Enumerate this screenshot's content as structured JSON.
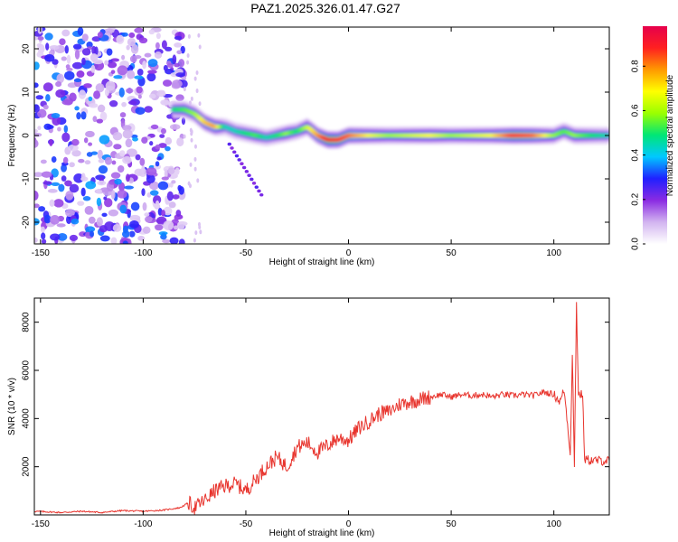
{
  "title": "PAZ1.2025.326.01.47.G27",
  "colors": {
    "snr_line": "#e8352e",
    "frame": "#000000",
    "spectral_peak": "#ff2a2a"
  },
  "chart_data": [
    {
      "type": "heatmap",
      "name": "spectrogram",
      "xlabel": "Height of straight line (km)",
      "ylabel": "Frequency (Hz)",
      "xlim": [
        -153,
        127
      ],
      "ylim": [
        -25,
        25
      ],
      "xticks": [
        -150,
        -100,
        -50,
        0,
        50,
        100
      ],
      "yticks": [
        -20,
        -10,
        0,
        10,
        20
      ],
      "colorbar": {
        "label": "Normalized spectral amplitude",
        "range": [
          0,
          0.98
        ],
        "ticks": [
          "0.0",
          "0.2",
          "0.4",
          "0.6",
          "0.8"
        ],
        "colormap": [
          "#ffffff",
          "#d2b4f0",
          "#8a2be2",
          "#2020ff",
          "#00c8ff",
          "#00e676",
          "#9aff00",
          "#ffff00",
          "#ff9900",
          "#ff2020",
          "#e6004c"
        ]
      },
      "ridge_description": "Scattered noise below about -80 km; signal converges to ~6 Hz near -80 km and follows ~0 Hz from -60 km to 127 km",
      "ridge": {
        "x": [
          -85,
          -80,
          -75,
          -70,
          -65,
          -60,
          -55,
          -50,
          -45,
          -40,
          -35,
          -30,
          -25,
          -20,
          -15,
          -10,
          -5,
          0,
          10,
          20,
          30,
          40,
          50,
          60,
          70,
          80,
          90,
          100,
          105,
          110,
          120,
          127
        ],
        "freq": [
          6,
          6,
          5,
          3,
          2,
          2,
          1,
          0.5,
          0,
          -0.5,
          0,
          0.5,
          1,
          2,
          0,
          -1,
          -1,
          0,
          0,
          0,
          0,
          0,
          0,
          0,
          0,
          0,
          0,
          0,
          1,
          0,
          0,
          0
        ],
        "amplitude": [
          0.5,
          0.55,
          0.6,
          0.75,
          0.8,
          0.45,
          0.45,
          0.5,
          0.55,
          0.45,
          0.5,
          0.6,
          0.5,
          0.65,
          0.8,
          0.95,
          0.9,
          0.85,
          0.7,
          0.6,
          0.65,
          0.7,
          0.6,
          0.65,
          0.7,
          0.9,
          0.85,
          0.6,
          0.55,
          0.6,
          0.5,
          0.45
        ]
      }
    },
    {
      "type": "line",
      "name": "snr",
      "xlabel": "Height of straight line (km)",
      "ylabel": "SNR (10 * v/v)",
      "xlim": [
        -153,
        127
      ],
      "ylim": [
        0,
        9000
      ],
      "xticks": [
        -150,
        -100,
        -50,
        0,
        50,
        100
      ],
      "yticks": [
        2000,
        4000,
        6000,
        8000
      ],
      "series": [
        {
          "name": "SNR",
          "x": [
            -153,
            -140,
            -130,
            -120,
            -110,
            -100,
            -90,
            -82,
            -78,
            -75,
            -70,
            -65,
            -60,
            -55,
            -50,
            -45,
            -40,
            -35,
            -30,
            -25,
            -20,
            -15,
            -10,
            -5,
            0,
            5,
            10,
            15,
            20,
            25,
            30,
            35,
            40,
            45,
            50,
            55,
            60,
            65,
            70,
            75,
            80,
            85,
            90,
            95,
            100,
            103,
            105,
            107,
            108,
            109,
            110,
            111,
            112,
            114,
            115,
            120,
            127
          ],
          "y": [
            150,
            100,
            150,
            100,
            180,
            150,
            200,
            300,
            500,
            300,
            600,
            1000,
            1200,
            1300,
            1000,
            1500,
            2000,
            2400,
            2000,
            2800,
            3000,
            2600,
            2900,
            3200,
            3100,
            3600,
            3900,
            4200,
            4300,
            4600,
            4700,
            4800,
            4900,
            5000,
            4900,
            5000,
            4950,
            5000,
            4900,
            5000,
            4950,
            5000,
            4950,
            5100,
            5000,
            4700,
            5200,
            3500,
            2500,
            6800,
            1900,
            8800,
            5000,
            5000,
            2300,
            2250,
            2250
          ]
        }
      ]
    }
  ]
}
